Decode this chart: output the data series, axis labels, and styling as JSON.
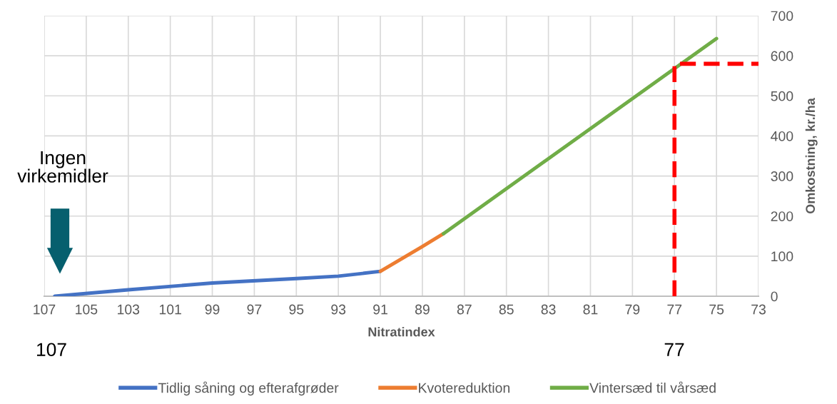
{
  "chart_data": {
    "type": "line",
    "xlabel": "Nitratindex",
    "ylabel": "Omkostning, kr./ha",
    "xlim": [
      107,
      73
    ],
    "xticks": [
      107,
      105,
      103,
      101,
      99,
      97,
      95,
      93,
      91,
      89,
      87,
      85,
      83,
      81,
      79,
      77,
      75,
      73
    ],
    "ylim": [
      0,
      700
    ],
    "yticks": [
      0,
      100,
      200,
      300,
      400,
      500,
      600,
      700
    ],
    "grid": true,
    "legend": "bottom",
    "marker": "none",
    "line_style": "solid",
    "series": [
      {
        "name": "Tidlig såning og efterafgrøder",
        "color": "#4472c4",
        "x": [
          106.5,
          103,
          99,
          95,
          93,
          91
        ],
        "values": [
          0,
          16,
          33,
          44,
          50,
          62
        ]
      },
      {
        "name": "Kvotereduktion",
        "color": "#ed7d31",
        "x": [
          91,
          89,
          88
        ],
        "values": [
          62,
          124,
          156
        ]
      },
      {
        "name": "Vintersæd til vårsæd",
        "color": "#70ad47",
        "x": [
          88,
          75
        ],
        "values": [
          156,
          643
        ]
      },
      {
        "color": "#ff0000",
        "line_style": "dashed",
        "x": [
          77,
          77,
          73
        ],
        "values": [
          0,
          580,
          580
        ]
      }
    ],
    "annotations": [
      "Ingen virkemidler",
      "107",
      "77"
    ]
  }
}
